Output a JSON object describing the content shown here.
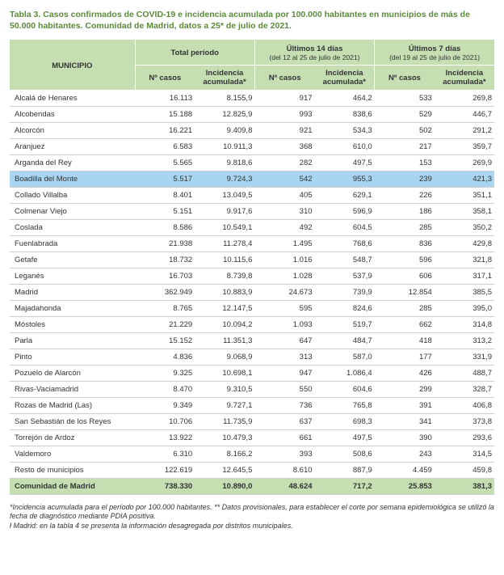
{
  "title": "Tabla 3. Casos confirmados de COVID-19 e incidencia acumulada por 100.000 habitantes en municipios de más de 50.000 habitantes. Comunidad de Madrid, datos a 25* de julio de 2021.",
  "headers": {
    "municipio": "MUNICIPIO",
    "group_total": "Total período",
    "group_14": "Últimos 14 días",
    "group_14_sub": "(del 12  al 25 de julio de 2021)",
    "group_7": "Últimos 7 días",
    "group_7_sub": "(del 19 al 25 de julio de 2021)",
    "casos": "Nº casos",
    "incidencia": "Incidencia acumulada*"
  },
  "highlight_row_index": 5,
  "rows": [
    {
      "m": "Alcalá de Henares",
      "c1": "16.113",
      "i1": "8.155,9",
      "c2": "917",
      "i2": "464,2",
      "c3": "533",
      "i3": "269,8"
    },
    {
      "m": "Alcobendas",
      "c1": "15.188",
      "i1": "12.825,9",
      "c2": "993",
      "i2": "838,6",
      "c3": "529",
      "i3": "446,7"
    },
    {
      "m": "Alcorcón",
      "c1": "16.221",
      "i1": "9.409,8",
      "c2": "921",
      "i2": "534,3",
      "c3": "502",
      "i3": "291,2"
    },
    {
      "m": "Aranjuez",
      "c1": "6.583",
      "i1": "10.911,3",
      "c2": "368",
      "i2": "610,0",
      "c3": "217",
      "i3": "359,7"
    },
    {
      "m": "Arganda del Rey",
      "c1": "5.565",
      "i1": "9.818,6",
      "c2": "282",
      "i2": "497,5",
      "c3": "153",
      "i3": "269,9"
    },
    {
      "m": "Boadilla del Monte",
      "c1": "5.517",
      "i1": "9.724,3",
      "c2": "542",
      "i2": "955,3",
      "c3": "239",
      "i3": "421,3"
    },
    {
      "m": "Collado Villalba",
      "c1": "8.401",
      "i1": "13.049,5",
      "c2": "405",
      "i2": "629,1",
      "c3": "226",
      "i3": "351,1"
    },
    {
      "m": "Colmenar Viejo",
      "c1": "5.151",
      "i1": "9.917,6",
      "c2": "310",
      "i2": "596,9",
      "c3": "186",
      "i3": "358,1"
    },
    {
      "m": "Coslada",
      "c1": "8.586",
      "i1": "10.549,1",
      "c2": "492",
      "i2": "604,5",
      "c3": "285",
      "i3": "350,2"
    },
    {
      "m": "Fuenlabrada",
      "c1": "21.938",
      "i1": "11.278,4",
      "c2": "1.495",
      "i2": "768,6",
      "c3": "836",
      "i3": "429,8"
    },
    {
      "m": "Getafe",
      "c1": "18.732",
      "i1": "10.115,6",
      "c2": "1.016",
      "i2": "548,7",
      "c3": "596",
      "i3": "321,8"
    },
    {
      "m": "Leganés",
      "c1": "16.703",
      "i1": "8.739,8",
      "c2": "1.028",
      "i2": "537,9",
      "c3": "606",
      "i3": "317,1"
    },
    {
      "m": "Madrid",
      "c1": "362.949",
      "i1": "10.883,9",
      "c2": "24.673",
      "i2": "739,9",
      "c3": "12.854",
      "i3": "385,5"
    },
    {
      "m": "Majadahonda",
      "c1": "8.765",
      "i1": "12.147,5",
      "c2": "595",
      "i2": "824,6",
      "c3": "285",
      "i3": "395,0"
    },
    {
      "m": "Móstoles",
      "c1": "21.229",
      "i1": "10.094,2",
      "c2": "1.093",
      "i2": "519,7",
      "c3": "662",
      "i3": "314,8"
    },
    {
      "m": "Parla",
      "c1": "15.152",
      "i1": "11.351,3",
      "c2": "647",
      "i2": "484,7",
      "c3": "418",
      "i3": "313,2"
    },
    {
      "m": "Pinto",
      "c1": "4.836",
      "i1": "9.068,9",
      "c2": "313",
      "i2": "587,0",
      "c3": "177",
      "i3": "331,9"
    },
    {
      "m": "Pozuelo de Alarcón",
      "c1": "9.325",
      "i1": "10.698,1",
      "c2": "947",
      "i2": "1.086,4",
      "c3": "426",
      "i3": "488,7"
    },
    {
      "m": "Rivas-Vaciamadrid",
      "c1": "8.470",
      "i1": "9.310,5",
      "c2": "550",
      "i2": "604,6",
      "c3": "299",
      "i3": "328,7"
    },
    {
      "m": "Rozas de Madrid (Las)",
      "c1": "9.349",
      "i1": "9.727,1",
      "c2": "736",
      "i2": "765,8",
      "c3": "391",
      "i3": "406,8"
    },
    {
      "m": "San Sebastián de los Reyes",
      "c1": "10.706",
      "i1": "11.735,9",
      "c2": "637",
      "i2": "698,3",
      "c3": "341",
      "i3": "373,8"
    },
    {
      "m": "Torrejón de Ardoz",
      "c1": "13.922",
      "i1": "10.479,3",
      "c2": "661",
      "i2": "497,5",
      "c3": "390",
      "i3": "293,6"
    },
    {
      "m": "Valdemoro",
      "c1": "6.310",
      "i1": "8.166,2",
      "c2": "393",
      "i2": "508,6",
      "c3": "243",
      "i3": "314,5"
    },
    {
      "m": "Resto de municipios",
      "c1": "122.619",
      "i1": "12.645,5",
      "c2": "8.610",
      "i2": "887,9",
      "c3": "4.459",
      "i3": "459,8"
    }
  ],
  "total": {
    "m": "Comunidad de Madrid",
    "c1": "738.330",
    "i1": "10.890,0",
    "c2": "48.624",
    "i2": "717,2",
    "c3": "25.853",
    "i3": "381,3"
  },
  "footnotes": [
    "*Incidencia acumulada para el período por 100.000 habitantes. ** Datos provisionales, para establecer el corte por semana epidemiológica se utilizó la fecha de diagnóstico mediante PDIA positiva.",
    "ƚ Madrid: en la tabla 4 se presenta la información desagregada por distritos municipales."
  ],
  "colors": {
    "title": "#5a8a3a",
    "header_bg": "#c5dfb3",
    "highlight_bg": "#a8d5f0",
    "row_border": "#d0d0d0"
  }
}
